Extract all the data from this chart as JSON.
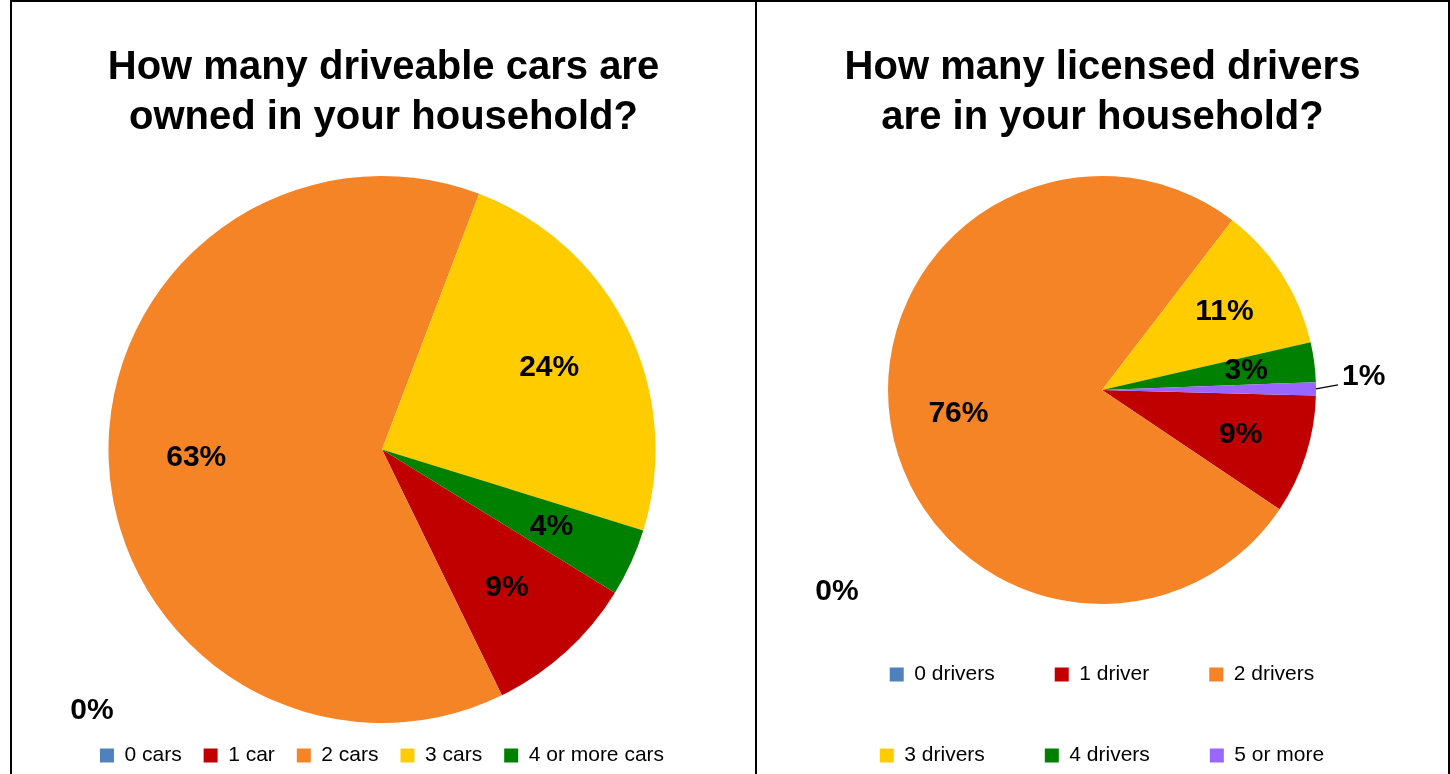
{
  "chart_data": [
    {
      "type": "pie",
      "title": "How many driveable cars are owned in your household?",
      "categories": [
        "0 cars",
        "1 car",
        "2 cars",
        "3 cars",
        "4 or more cars"
      ],
      "values": [
        0,
        9,
        63,
        24,
        4
      ],
      "value_labels": [
        "0%",
        "9%",
        "63%",
        "24%",
        "4%"
      ],
      "colors": [
        "#4f81bd",
        "#c00000",
        "#f58426",
        "#ffcc00",
        "#008000"
      ],
      "legend": "bottom"
    },
    {
      "type": "pie",
      "title": "How many licensed drivers are in your household?",
      "categories": [
        "0 drivers",
        "1 driver",
        "2 drivers",
        "3 drivers",
        "4 drivers",
        "5 or more"
      ],
      "values": [
        0,
        9,
        76,
        11,
        3,
        1
      ],
      "value_labels": [
        "0%",
        "9%",
        "76%",
        "11%",
        "3%",
        "1%"
      ],
      "colors": [
        "#4f81bd",
        "#c00000",
        "#f58426",
        "#ffcc00",
        "#008000",
        "#9966ff"
      ],
      "legend": "bottom"
    }
  ]
}
